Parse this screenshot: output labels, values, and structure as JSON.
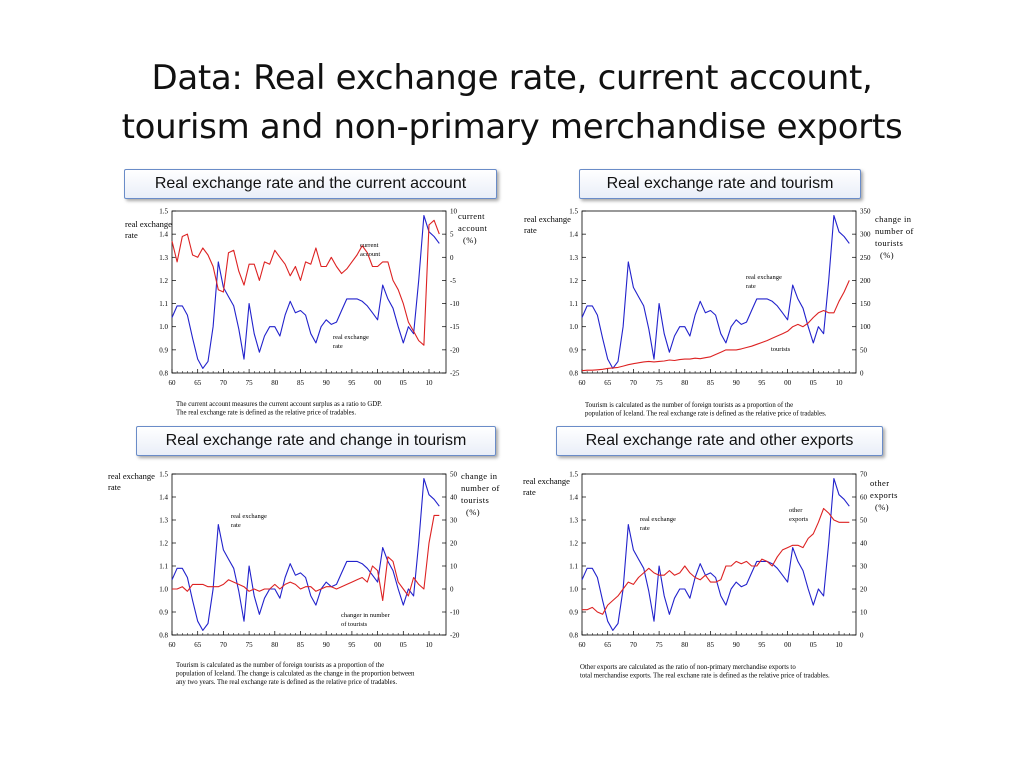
{
  "slide": {
    "title_line1": "Data: Real exchange rate, current account,",
    "title_line2": "tourism and non-primary merchandise exports"
  },
  "colors": {
    "rer": "#2222cc",
    "other": "#dd2222",
    "label_border": "#6a8cc8"
  },
  "chart_data": [
    {
      "id": "ca",
      "type": "line",
      "panel_label": "Real exchange rate and the current account",
      "x_ticks": [
        "60",
        "65",
        "70",
        "75",
        "80",
        "85",
        "90",
        "95",
        "00",
        "05",
        "10"
      ],
      "left_axis": {
        "ylim": [
          0.8,
          1.5
        ],
        "ticks": [
          "0.8",
          "0.9",
          "1.0",
          "1.1",
          "1.2",
          "1.3",
          "1.4",
          "1.5"
        ]
      },
      "right_axis": {
        "ylim": [
          -25,
          10
        ],
        "ticks": [
          "-25",
          "-20",
          "-15",
          "-10",
          "-5",
          "0",
          "5",
          "10"
        ]
      },
      "left_axis_label": [
        "real exchange",
        "rate"
      ],
      "right_axis_label": [
        "current",
        "account",
        "(%)"
      ],
      "annotations": [
        [
          "current",
          "account"
        ],
        [
          "real exchange",
          "rate"
        ]
      ],
      "caption": [
        "The current account measures the current account surplus as a ratio to GDP.",
        "The real exchange rate is defined as the relative price of tradables."
      ],
      "series": [
        {
          "axis": "left",
          "color": "blue",
          "start_year": 1960,
          "values": [
            1.04,
            1.09,
            1.09,
            1.05,
            0.95,
            0.86,
            0.82,
            0.85,
            1.0,
            1.28,
            1.17,
            1.13,
            1.09,
            0.99,
            0.86,
            1.1,
            0.97,
            0.89,
            0.96,
            1.0,
            1.0,
            0.96,
            1.05,
            1.11,
            1.06,
            1.07,
            1.05,
            0.97,
            0.93,
            1.0,
            1.03,
            1.01,
            1.02,
            1.07,
            1.12,
            1.12,
            1.12,
            1.11,
            1.09,
            1.06,
            1.03,
            1.18,
            1.12,
            1.08,
            1.0,
            0.93,
            1.0,
            0.97,
            1.2,
            1.48,
            1.41,
            1.39,
            1.36
          ]
        },
        {
          "axis": "right",
          "color": "red",
          "start_year": 1960,
          "values": [
            3.5,
            -1,
            4.5,
            5,
            0.5,
            0,
            2,
            0.5,
            -2,
            -7,
            -7.5,
            1,
            1.5,
            -3,
            -6,
            -1.5,
            -1.5,
            -5,
            -1,
            -1.5,
            1.5,
            0,
            -1.5,
            -4,
            -2,
            -5,
            -1,
            -1.5,
            2,
            -2,
            -2,
            0,
            -2,
            -3.5,
            -2.5,
            -1,
            0.5,
            2.5,
            1,
            -2,
            -2,
            -1,
            -1,
            -5,
            -7,
            -10,
            -14,
            -16,
            -18,
            -19,
            7,
            8,
            5
          ]
        }
      ]
    },
    {
      "id": "tour",
      "type": "line",
      "panel_label": "Real exchange rate and tourism",
      "x_ticks": [
        "60",
        "65",
        "70",
        "75",
        "80",
        "85",
        "90",
        "95",
        "00",
        "05",
        "10"
      ],
      "left_axis": {
        "ylim": [
          0.8,
          1.5
        ],
        "ticks": [
          "0.8",
          "0.9",
          "1.0",
          "1.1",
          "1.2",
          "1.3",
          "1.4",
          "1.5"
        ]
      },
      "right_axis": {
        "ylim": [
          0,
          350
        ],
        "ticks": [
          "0",
          "50",
          "100",
          "150",
          "200",
          "250",
          "300",
          "350"
        ]
      },
      "left_axis_label": [
        "real exchange",
        "rate"
      ],
      "right_axis_label": [
        "change in",
        "number of",
        "tourists",
        "(%)"
      ],
      "annotations": [
        [
          "real exchange",
          "rate"
        ],
        [
          "tourists"
        ]
      ],
      "caption": [
        "Tourism is calculated as the number of foreign tourists as a proportion of the",
        "population of Iceland. The real exchange rate is defined as the relative price of tradables."
      ],
      "series": [
        {
          "axis": "left",
          "color": "blue",
          "start_year": 1960,
          "values": [
            1.04,
            1.09,
            1.09,
            1.05,
            0.95,
            0.86,
            0.82,
            0.85,
            1.0,
            1.28,
            1.17,
            1.13,
            1.09,
            0.99,
            0.86,
            1.1,
            0.97,
            0.89,
            0.96,
            1.0,
            1.0,
            0.96,
            1.05,
            1.11,
            1.06,
            1.07,
            1.05,
            0.97,
            0.93,
            1.0,
            1.03,
            1.01,
            1.02,
            1.07,
            1.12,
            1.12,
            1.12,
            1.11,
            1.09,
            1.06,
            1.03,
            1.18,
            1.12,
            1.08,
            1.0,
            0.93,
            1.0,
            0.97,
            1.2,
            1.48,
            1.41,
            1.39,
            1.36
          ]
        },
        {
          "axis": "right",
          "color": "red",
          "start_year": 1960,
          "values": [
            5,
            6,
            6,
            7,
            8,
            10,
            11,
            12,
            15,
            18,
            20,
            22,
            24,
            25,
            24,
            25,
            26,
            28,
            27,
            29,
            30,
            30,
            32,
            31,
            33,
            35,
            40,
            45,
            50,
            50,
            50,
            52,
            55,
            58,
            62,
            66,
            70,
            75,
            80,
            85,
            90,
            100,
            105,
            100,
            108,
            120,
            130,
            135,
            130,
            130,
            155,
            175,
            200
          ]
        }
      ]
    },
    {
      "id": "chg",
      "type": "line",
      "panel_label": "Real exchange rate and change in tourism",
      "x_ticks": [
        "60",
        "65",
        "70",
        "75",
        "80",
        "85",
        "90",
        "95",
        "00",
        "05",
        "10"
      ],
      "left_axis": {
        "ylim": [
          0.8,
          1.5
        ],
        "ticks": [
          "0.8",
          "0.9",
          "1.0",
          "1.1",
          "1.2",
          "1.3",
          "1.4",
          "1.5"
        ]
      },
      "right_axis": {
        "ylim": [
          -20,
          50
        ],
        "ticks": [
          "-20",
          "-10",
          "0",
          "10",
          "20",
          "30",
          "40",
          "50"
        ]
      },
      "left_axis_label": [
        "real exchange",
        "rate"
      ],
      "right_axis_label": [
        "change in",
        "number of",
        "tourists",
        "(%)"
      ],
      "annotations": [
        [
          "real exchange",
          "rate"
        ],
        [
          "changer in number",
          "of tourists"
        ]
      ],
      "caption": [
        "Tourism is calculated as the number of foreign tourists as a proportion of the",
        "population of Iceland. The change is calculated as the change in the proportion between",
        "any two years. The real exchange rate is defined as the relative price of tradables."
      ],
      "series": [
        {
          "axis": "left",
          "color": "blue",
          "start_year": 1960,
          "values": [
            1.04,
            1.09,
            1.09,
            1.05,
            0.95,
            0.86,
            0.82,
            0.85,
            1.0,
            1.28,
            1.17,
            1.13,
            1.09,
            0.99,
            0.86,
            1.1,
            0.97,
            0.89,
            0.96,
            1.0,
            1.0,
            0.96,
            1.05,
            1.11,
            1.06,
            1.07,
            1.05,
            0.97,
            0.93,
            1.0,
            1.03,
            1.01,
            1.02,
            1.07,
            1.12,
            1.12,
            1.12,
            1.11,
            1.09,
            1.06,
            1.03,
            1.18,
            1.12,
            1.08,
            1.0,
            0.93,
            1.0,
            0.97,
            1.2,
            1.48,
            1.41,
            1.39,
            1.36
          ]
        },
        {
          "axis": "right",
          "color": "red",
          "start_year": 1960,
          "values": [
            0,
            0,
            1,
            -1,
            2,
            2,
            2,
            1,
            1,
            1,
            2,
            4,
            3,
            2,
            1,
            -1,
            0,
            -1,
            0,
            0,
            2,
            0,
            2,
            3,
            2,
            0,
            1,
            1,
            -1,
            0,
            1,
            1,
            0,
            1,
            2,
            3,
            4,
            5,
            3,
            10,
            8,
            -5,
            14,
            12,
            3,
            0,
            -3,
            5,
            2,
            0,
            20,
            32,
            32
          ]
        }
      ]
    },
    {
      "id": "exp",
      "type": "line",
      "panel_label": "Real exchange rate and other exports",
      "x_ticks": [
        "60",
        "65",
        "70",
        "75",
        "80",
        "85",
        "90",
        "95",
        "00",
        "05",
        "10"
      ],
      "left_axis": {
        "ylim": [
          0.8,
          1.5
        ],
        "ticks": [
          "0.8",
          "0.9",
          "1.0",
          "1.1",
          "1.2",
          "1.3",
          "1.4",
          "1.5"
        ]
      },
      "right_axis": {
        "ylim": [
          0,
          70
        ],
        "ticks": [
          "0",
          "10",
          "20",
          "30",
          "40",
          "50",
          "60",
          "70"
        ]
      },
      "left_axis_label": [
        "real exchange",
        "rate"
      ],
      "right_axis_label": [
        "other",
        "exports",
        "(%)"
      ],
      "annotations": [
        [
          "real exchange",
          "rate"
        ],
        [
          "other",
          "exports"
        ]
      ],
      "caption": [
        "Other exports are calculated as the ratio of non-primary merchandise exports to",
        "total merchandise exports. The real exchane rate is defined as the relative price of tradables."
      ],
      "series": [
        {
          "axis": "left",
          "color": "blue",
          "start_year": 1960,
          "values": [
            1.04,
            1.09,
            1.09,
            1.05,
            0.95,
            0.86,
            0.82,
            0.85,
            1.0,
            1.28,
            1.17,
            1.13,
            1.09,
            0.99,
            0.86,
            1.1,
            0.97,
            0.89,
            0.96,
            1.0,
            1.0,
            0.96,
            1.05,
            1.11,
            1.06,
            1.07,
            1.05,
            0.97,
            0.93,
            1.0,
            1.03,
            1.01,
            1.02,
            1.07,
            1.12,
            1.12,
            1.12,
            1.11,
            1.09,
            1.06,
            1.03,
            1.18,
            1.12,
            1.08,
            1.0,
            0.93,
            1.0,
            0.97,
            1.2,
            1.48,
            1.41,
            1.39,
            1.36
          ]
        },
        {
          "axis": "right",
          "color": "red",
          "start_year": 1960,
          "values": [
            11,
            11,
            12,
            10,
            9,
            13,
            15,
            17,
            20,
            23,
            22,
            25,
            27,
            29,
            27,
            26,
            26,
            28,
            26,
            27,
            30,
            27,
            25,
            24,
            26,
            23,
            23,
            24,
            30,
            30,
            32,
            31,
            32,
            30,
            30,
            33,
            32,
            30,
            34,
            37,
            38,
            39,
            39,
            38,
            42,
            44,
            49,
            55,
            53,
            50,
            49,
            49,
            49
          ]
        }
      ]
    }
  ]
}
